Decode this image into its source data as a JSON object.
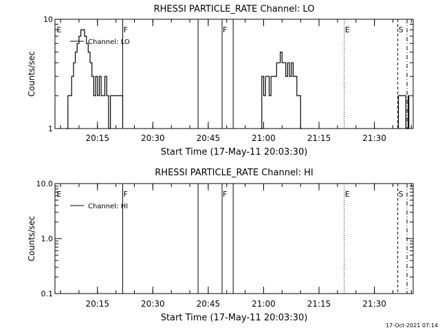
{
  "footer_timestamp": "17-Oct-2021 07:14",
  "chart_data": [
    {
      "type": "line",
      "title": "RHESSI PARTICLE_RATE Channel: LO",
      "xlabel": "Start Time (17-May-11 20:03:30)",
      "ylabel": "Counts/sec",
      "y_scale": "log",
      "ylim": [
        1,
        10
      ],
      "y_ticks": [
        {
          "value": 1,
          "label": "1"
        },
        {
          "value": 10,
          "label": "10"
        }
      ],
      "xlim": [
        "20:03:30",
        "21:40:30"
      ],
      "x_ticks": [
        "20:15",
        "20:30",
        "20:45",
        "21:00",
        "21:15",
        "21:30"
      ],
      "legend": {
        "label": "Channel: LO",
        "placement": "top-left"
      },
      "series": [
        {
          "name": "Channel: LO",
          "segments": [
            {
              "x": [
                "20:06:30",
                "20:07:00",
                "20:08:00",
                "20:08:30",
                "20:09:00",
                "20:09:30",
                "20:10:00",
                "20:10:30",
                "20:11:00",
                "20:11:30",
                "20:12:00",
                "20:12:30",
                "20:13:00",
                "20:13:30",
                "20:14:00",
                "20:14:30",
                "20:15:00",
                "20:15:30",
                "20:16:00",
                "20:16:30",
                "20:17:00",
                "20:17:30",
                "20:18:00",
                "20:18:30",
                "20:19:00",
                "20:19:30",
                "20:20:00",
                "20:20:30",
                "20:21:00",
                "20:21:30",
                "20:21:50"
              ],
              "y": [
                1,
                2,
                3,
                4,
                5,
                6,
                7,
                8,
                8,
                7,
                6,
                5,
                4,
                3,
                2,
                3,
                2,
                3,
                2,
                2,
                3,
                2,
                1,
                2,
                2,
                2,
                2,
                2,
                2,
                2,
                1
              ]
            },
            {
              "x": [
                "20:59:00",
                "20:59:30",
                "21:00:00",
                "21:00:30",
                "21:01:00",
                "21:01:30",
                "21:02:00",
                "21:02:30",
                "21:03:00",
                "21:03:30",
                "21:04:00",
                "21:04:30",
                "21:05:00",
                "21:05:30",
                "21:06:00",
                "21:06:30",
                "21:07:00",
                "21:07:30",
                "21:08:00",
                "21:08:30",
                "21:09:00",
                "21:09:30",
                "21:10:00",
                "21:10:30"
              ],
              "y": [
                1,
                3,
                2,
                3,
                3,
                2,
                3,
                3,
                3,
                4,
                4,
                5,
                4,
                4,
                3,
                4,
                3,
                4,
                3,
                3,
                2,
                2,
                1,
                1
              ]
            },
            {
              "x": [
                "21:36:20",
                "21:36:30",
                "21:38:00",
                "21:38:30",
                "21:39:00",
                "21:39:10",
                "21:39:20"
              ],
              "y": [
                1,
                2,
                2,
                1,
                1,
                2,
                1
              ]
            }
          ]
        }
      ],
      "event_markers": [
        {
          "time": "20:03:45",
          "label": "E",
          "line": "none"
        },
        {
          "time": "20:21:50",
          "label": "F",
          "line": "solid"
        },
        {
          "time": "20:42:15",
          "label": "",
          "line": "solid"
        },
        {
          "time": "20:48:45",
          "label": "F",
          "line": "solid"
        },
        {
          "time": "20:51:45",
          "label": "",
          "line": "solid"
        },
        {
          "time": "21:21:50",
          "label": "E",
          "line": "dotted"
        },
        {
          "time": "21:36:20",
          "label": "S",
          "line": "dashed"
        },
        {
          "time": "21:38:50",
          "label": "",
          "line": "dashdot"
        }
      ]
    },
    {
      "type": "line",
      "title": "RHESSI PARTICLE_RATE Channel: HI",
      "xlabel": "Start Time (17-May-11 20:03:30)",
      "ylabel": "Counts/sec",
      "y_scale": "log",
      "ylim": [
        0.1,
        10
      ],
      "y_ticks": [
        {
          "value": 0.1,
          "label": "0.1"
        },
        {
          "value": 1,
          "label": "1.0"
        },
        {
          "value": 10,
          "label": "10.0"
        }
      ],
      "xlim": [
        "20:03:30",
        "21:40:30"
      ],
      "x_ticks": [
        "20:15",
        "20:30",
        "20:45",
        "21:00",
        "21:15",
        "21:30"
      ],
      "legend": {
        "label": "Channel: HI",
        "placement": "top-left"
      },
      "series": [
        {
          "name": "Channel: HI",
          "segments": []
        }
      ],
      "event_markers": [
        {
          "time": "20:03:45",
          "label": "E",
          "line": "none"
        },
        {
          "time": "20:21:50",
          "label": "F",
          "line": "solid"
        },
        {
          "time": "20:42:15",
          "label": "",
          "line": "solid"
        },
        {
          "time": "20:48:45",
          "label": "F",
          "line": "solid"
        },
        {
          "time": "20:51:45",
          "label": "",
          "line": "solid"
        },
        {
          "time": "21:21:50",
          "label": "E",
          "line": "dotted"
        },
        {
          "time": "21:36:20",
          "label": "S",
          "line": "dashed"
        },
        {
          "time": "21:38:50",
          "label": "",
          "line": "dashdot"
        }
      ]
    }
  ]
}
